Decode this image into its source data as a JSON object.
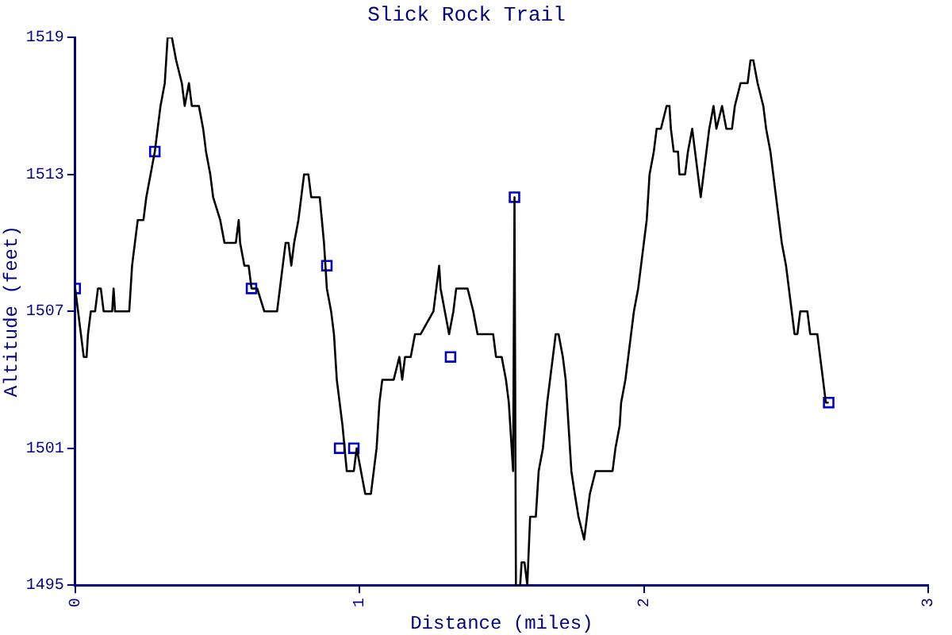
{
  "chart_data": {
    "type": "line",
    "title": "Slick Rock Trail",
    "xlabel": "Distance (miles)",
    "ylabel": "Altitude (feet)",
    "xlim": [
      0,
      3
    ],
    "xticks": [
      0,
      1,
      2,
      3
    ],
    "ylim": [
      1495,
      1519
    ],
    "yticks": [
      1495,
      1501,
      1507,
      1513,
      1519
    ],
    "grid": false,
    "legend": false,
    "series": [
      {
        "color": "#000000",
        "x": [
          0,
          0.01,
          0.02,
          0.03,
          0.04,
          0.045,
          0.055,
          0.07,
          0.08,
          0.09,
          0.1,
          0.13,
          0.135,
          0.14,
          0.19,
          0.2,
          0.21,
          0.22,
          0.24,
          0.25,
          0.265,
          0.28,
          0.29,
          0.3,
          0.315,
          0.32,
          0.325,
          0.34,
          0.355,
          0.375,
          0.385,
          0.4,
          0.41,
          0.435,
          0.45,
          0.46,
          0.475,
          0.485,
          0.51,
          0.525,
          0.565,
          0.575,
          0.58,
          0.595,
          0.61,
          0.62,
          0.64,
          0.665,
          0.71,
          0.72,
          0.73,
          0.74,
          0.75,
          0.76,
          0.77,
          0.785,
          0.795,
          0.805,
          0.82,
          0.83,
          0.86,
          0.875,
          0.885,
          0.9,
          0.91,
          0.92,
          0.94,
          0.955,
          0.965,
          0.98,
          0.99,
          1.005,
          1.02,
          1.03,
          1.04,
          1.05,
          1.06,
          1.07,
          1.08,
          1.12,
          1.14,
          1.15,
          1.16,
          1.18,
          1.195,
          1.215,
          1.26,
          1.27,
          1.28,
          1.285,
          1.3,
          1.315,
          1.33,
          1.34,
          1.38,
          1.4,
          1.415,
          1.47,
          1.48,
          1.5,
          1.515,
          1.525,
          1.535,
          1.54,
          1.545,
          1.55,
          1.565,
          1.57,
          1.58,
          1.59,
          1.6,
          1.62,
          1.63,
          1.645,
          1.66,
          1.67,
          1.68,
          1.69,
          1.7,
          1.715,
          1.725,
          1.735,
          1.745,
          1.757,
          1.77,
          1.79,
          1.8,
          1.81,
          1.83,
          1.89,
          1.9,
          1.915,
          1.92,
          1.935,
          1.945,
          1.955,
          1.965,
          1.98,
          1.99,
          2,
          2.01,
          2.02,
          2.035,
          2.045,
          2.06,
          2.08,
          2.09,
          2.095,
          2.105,
          2.12,
          2.125,
          2.145,
          2.155,
          2.17,
          2.18,
          2.19,
          2.2,
          2.21,
          2.22,
          2.23,
          2.245,
          2.255,
          2.275,
          2.29,
          2.31,
          2.32,
          2.34,
          2.365,
          2.375,
          2.385,
          2.4,
          2.42,
          2.43,
          2.445,
          2.455,
          2.465,
          2.475,
          2.485,
          2.5,
          2.51,
          2.52,
          2.53,
          2.54,
          2.55,
          2.575,
          2.585,
          2.61,
          2.62,
          2.63,
          2.64,
          2.65
        ],
        "values": [
          1508,
          1507,
          1506,
          1505,
          1505,
          1506,
          1507,
          1507,
          1508,
          1508,
          1507,
          1507,
          1508,
          1507,
          1507,
          1509,
          1510,
          1511,
          1511,
          1512,
          1513,
          1514,
          1515,
          1516,
          1517,
          1518,
          1519,
          1519,
          1518,
          1517,
          1516,
          1517,
          1516,
          1516,
          1515,
          1514,
          1513,
          1512,
          1511,
          1510,
          1510,
          1511,
          1510,
          1509,
          1509,
          1508,
          1508,
          1507,
          1507,
          1508,
          1509,
          1510,
          1510,
          1509,
          1510,
          1511,
          1512,
          1513,
          1513,
          1512,
          1512,
          1510,
          1508,
          1507,
          1506,
          1504,
          1502,
          1500,
          1500,
          1500,
          1501,
          1500,
          1499,
          1499,
          1499,
          1500,
          1501,
          1503,
          1504,
          1504,
          1505,
          1504,
          1505,
          1505,
          1506,
          1506,
          1507,
          1508,
          1509,
          1508,
          1507,
          1506,
          1507,
          1508,
          1508,
          1507,
          1506,
          1506,
          1505,
          1505,
          1504,
          1503,
          1501,
          1500,
          1512,
          1495,
          1495,
          1496,
          1496,
          1495,
          1498,
          1498,
          1500,
          1501,
          1503,
          1504,
          1505,
          1506,
          1506,
          1505,
          1504,
          1502,
          1500,
          1499,
          1498,
          1497,
          1498,
          1499,
          1500,
          1500,
          1501,
          1502,
          1503,
          1504,
          1505,
          1506,
          1507,
          1508,
          1509,
          1510,
          1511,
          1513,
          1514,
          1515,
          1515,
          1516,
          1516,
          1515,
          1514,
          1514,
          1513,
          1513,
          1514,
          1515,
          1514,
          1513,
          1512,
          1513,
          1514,
          1515,
          1516,
          1515,
          1516,
          1515,
          1515,
          1516,
          1517,
          1517,
          1518,
          1518,
          1517,
          1516,
          1515,
          1514,
          1513,
          1512,
          1511,
          1510,
          1509,
          1508,
          1507,
          1506,
          1506,
          1507,
          1507,
          1506,
          1506,
          1505,
          1504,
          1503,
          1503
        ]
      },
      {
        "type": "scatter",
        "marker": "square",
        "color": "#0000cc",
        "x": [
          0,
          0.28,
          0.62,
          0.885,
          0.93,
          0.98,
          1.32,
          1.545,
          2.65
        ],
        "values": [
          1508,
          1514,
          1508,
          1509,
          1501,
          1501,
          1505,
          1512,
          1503
        ]
      }
    ]
  }
}
